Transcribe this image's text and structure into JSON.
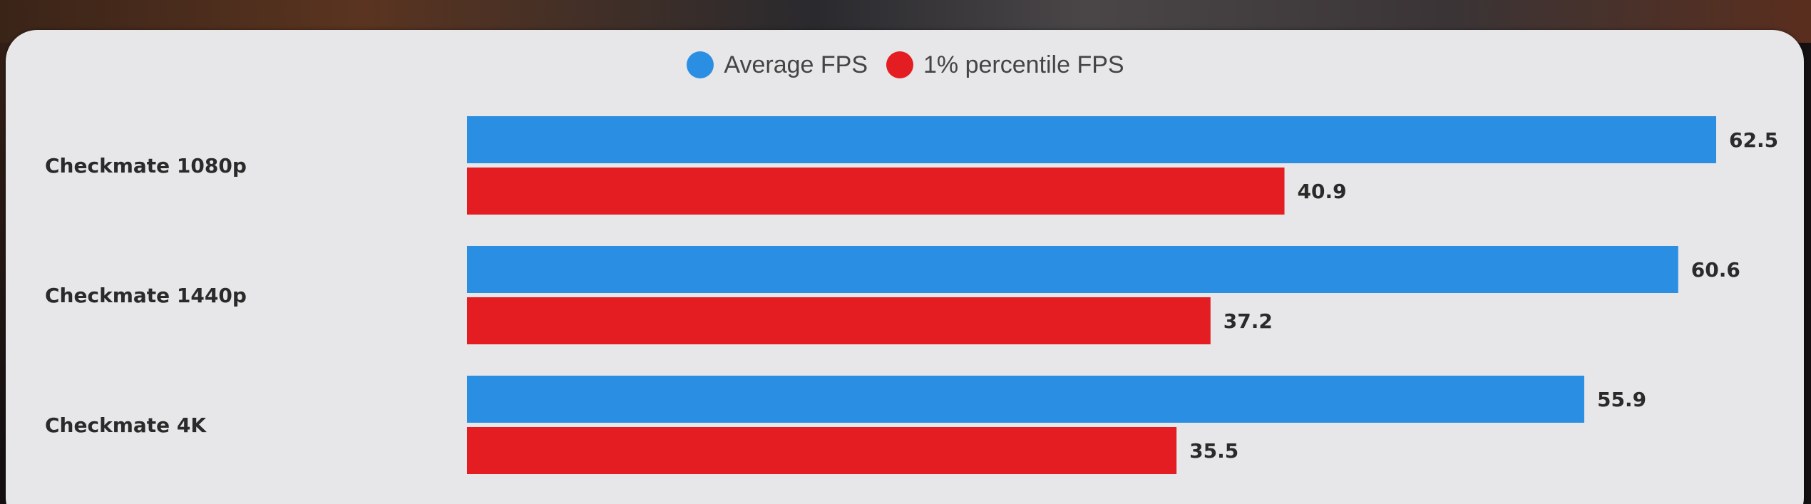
{
  "chart_data": {
    "type": "bar",
    "orientation": "horizontal",
    "categories": [
      "Checkmate 1080p",
      "Checkmate 1440p",
      "Checkmate 4K"
    ],
    "series": [
      {
        "name": "Average FPS",
        "values": [
          62.5,
          60.6,
          55.9
        ],
        "color": "#2a8fe3"
      },
      {
        "name": "1% percentile FPS",
        "values": [
          40.9,
          37.2,
          35.5
        ],
        "color": "#e31d21"
      }
    ],
    "xlim": [
      0,
      62.5
    ],
    "grid": false,
    "legend_position": "top-center"
  }
}
